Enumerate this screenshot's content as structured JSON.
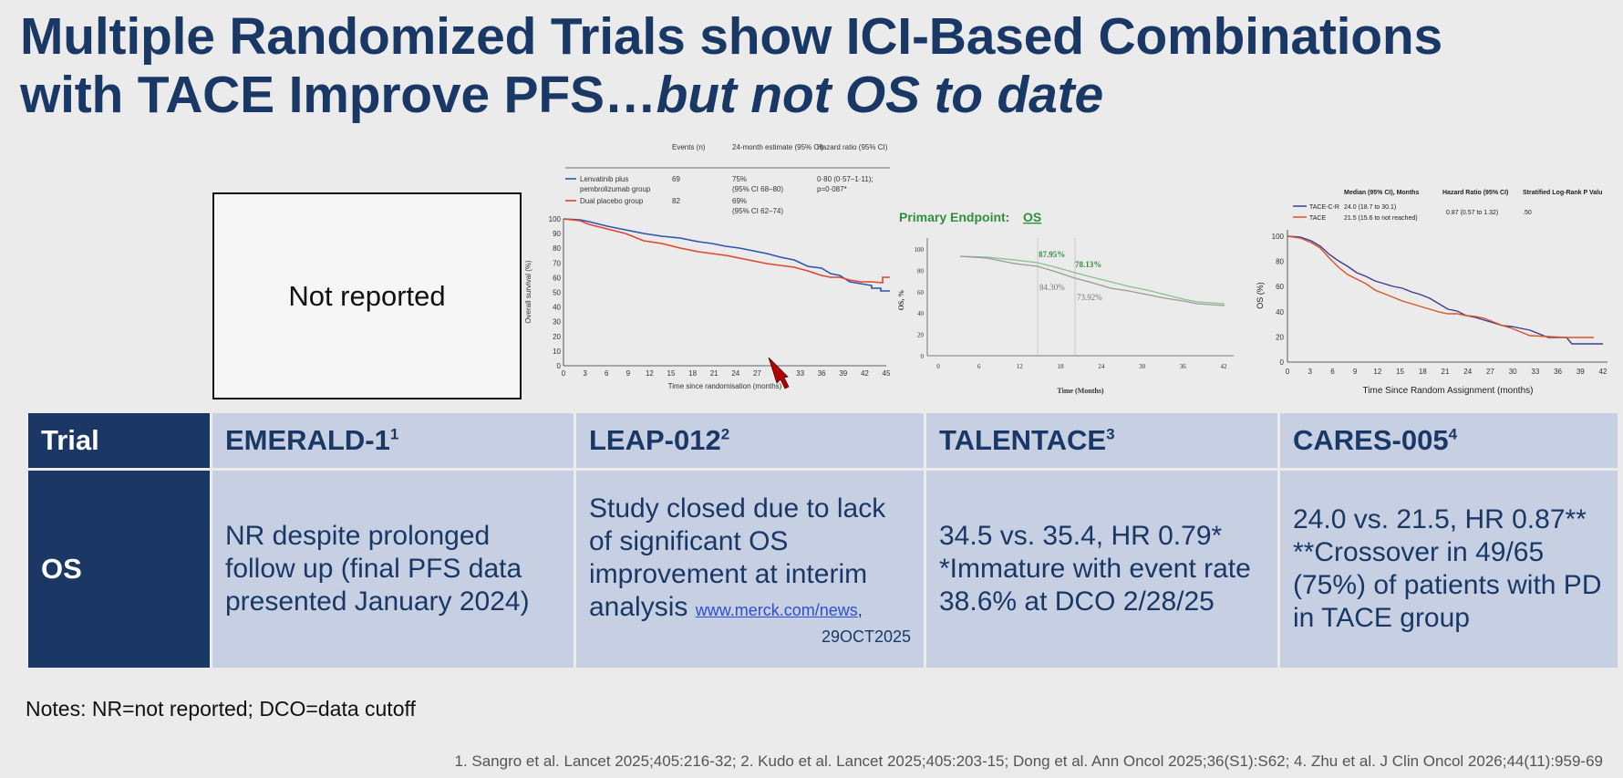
{
  "slide": {
    "title_line1": "Multiple Randomized Trials show ICI-Based Combinations",
    "title_line2_normal": "with TACE Improve PFS…",
    "title_line2_italic": "but not OS to date",
    "not_reported": "Not reported"
  },
  "leap_km": {
    "headers": [
      "Events (n)",
      "24-month estimate (95% CI)",
      "Hazard ratio (95% CI)"
    ],
    "arm1_label_a": "Lenvatinib plus",
    "arm1_label_b": "pembrolizumab group",
    "arm1_events": "69",
    "arm1_est_a": "75%",
    "arm1_est_b": "(95% CI 68–80)",
    "arm1_hr_a": "0·80 (0·57–1·11);",
    "arm1_hr_b": "p=0·087*",
    "arm2_label": "Dual placebo group",
    "arm2_events": "82",
    "arm2_est_a": "69%",
    "arm2_est_b": "(95% CI 62–74)",
    "ylabel": "Overall survival (%)",
    "xlabel": "Time since randomisation (months)",
    "xticks": [
      "0",
      "3",
      "6",
      "9",
      "12",
      "15",
      "18",
      "21",
      "24",
      "27",
      "30",
      "33",
      "36",
      "39",
      "42",
      "45"
    ],
    "yticks": [
      "0",
      "10",
      "20",
      "30",
      "40",
      "50",
      "60",
      "70",
      "80",
      "90",
      "100"
    ],
    "colors": {
      "arm1": "#2a55b0",
      "arm2": "#e0462b"
    }
  },
  "talentace_km": {
    "heading_prefix": "Primary Endpoint: ",
    "heading_link": "OS",
    "ylabel": "OS, %",
    "xlabel": "Time (Months)",
    "xticks": [
      "0",
      "6",
      "12",
      "18",
      "24",
      "30",
      "36",
      "42"
    ],
    "yticks": [
      "0",
      "20",
      "40",
      "60",
      "80",
      "100"
    ],
    "ann_green_12": "87.95%",
    "ann_green_18": "78.13%",
    "ann_gray_12": "84.30%",
    "ann_gray_18": "73.92%"
  },
  "cares_km": {
    "headers": [
      "Median (95% CI), Months",
      "Hazard Ratio (95% CI)",
      "Stratified Log-Rank P Valu"
    ],
    "arm1_label": "TACE-C-R",
    "arm1_median": "24.0 (18.7 to 30.1)",
    "arm2_label": "TACE",
    "arm2_median": "21.5 (15.6 to not reached)",
    "hr": "0.87 (0.57 to 1.32)",
    "p": ".50",
    "ylabel": "OS (%)",
    "xlabel": "Time Since Random Assignment (months)",
    "xticks": [
      "0",
      "3",
      "6",
      "9",
      "12",
      "15",
      "18",
      "21",
      "24",
      "27",
      "30",
      "33",
      "36",
      "39",
      "42"
    ],
    "yticks": [
      "0",
      "20",
      "40",
      "60",
      "80",
      "100"
    ],
    "colors": {
      "arm1": "#3d3c8f",
      "arm2": "#d8542a"
    }
  },
  "table": {
    "label_trial": "Trial",
    "label_os": "OS",
    "trials": [
      "EMERALD-1",
      "LEAP-012",
      "TALENTACE",
      "CARES-005"
    ],
    "sups": [
      "1",
      "2",
      "3",
      "4"
    ],
    "emerald_os": "NR despite prolonged follow up (final PFS data presented January 2024)",
    "leap_os": "Study closed due to lack of significant OS improvement at interim analysis",
    "leap_link": "www.merck.com/news",
    "leap_comma": ",",
    "leap_date": "29OCT2025",
    "talentace_os_1": "34.5 vs. 35.4, HR 0.79*",
    "talentace_os_2": "*Immature with event rate 38.6% at DCO 2/28/25",
    "cares_os_1": "24.0 vs. 21.5, HR 0.87**",
    "cares_os_2": "**Crossover in 49/65 (75%) of patients with PD in TACE group"
  },
  "notes": "Notes: NR=not reported; DCO=data cutoff",
  "references": "1. Sangro et al. Lancet 2025;405:216-32; 2. Kudo et al. Lancet 2025;405:203-15; Dong et al. Ann Oncol 2025;36(S1):S62; 4. Zhu et al. J Clin Oncol 2026;44(11):959-69"
}
